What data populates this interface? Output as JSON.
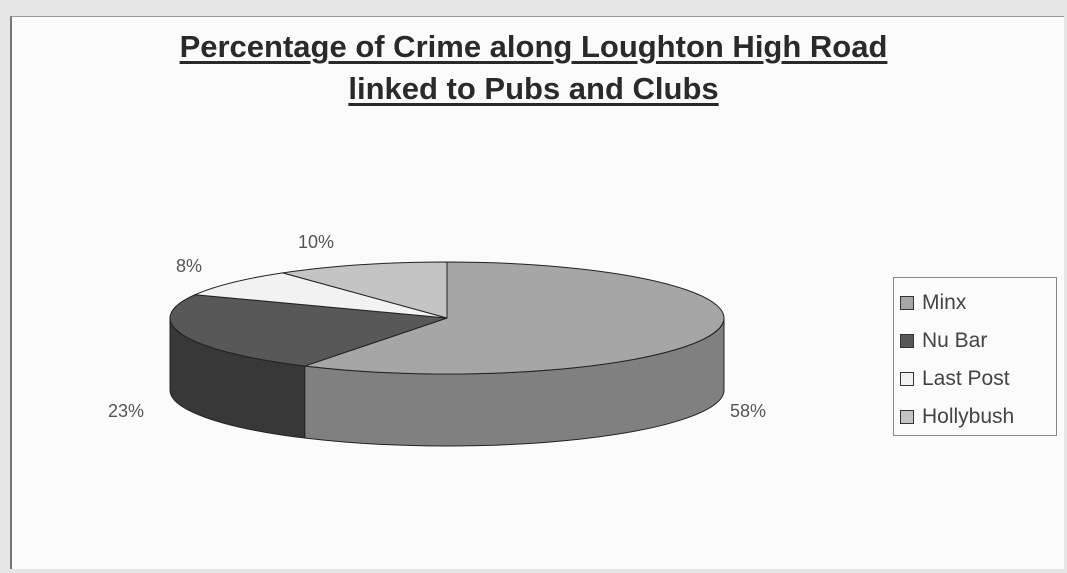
{
  "chart_data": {
    "type": "pie",
    "title_line1": "Percentage of Crime along Loughton High Road",
    "title_line2": "linked to Pubs and Clubs",
    "slices": [
      {
        "label": "Minx",
        "value": 58,
        "display": "58%",
        "color": "#a6a6a6",
        "side": "#808080"
      },
      {
        "label": "Nu Bar",
        "value": 23,
        "display": "23%",
        "color": "#585858",
        "side": "#383838"
      },
      {
        "label": "Last Post",
        "value": 8,
        "display": "8%",
        "color": "#f2f2f2",
        "side": "#cfcfcf"
      },
      {
        "label": "Hollybush",
        "value": 10,
        "display": "10%",
        "color": "#c4c4c4",
        "side": "#a0a0a0"
      }
    ],
    "legend_position": "right"
  }
}
